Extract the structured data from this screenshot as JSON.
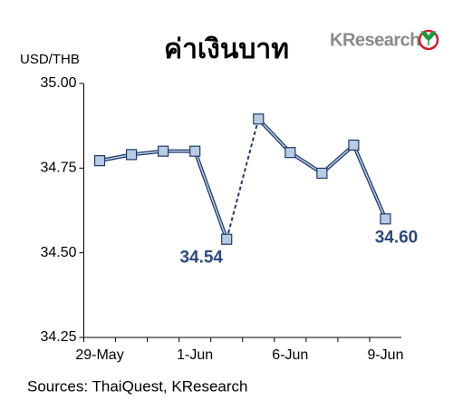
{
  "chart_data": {
    "type": "line",
    "title": "ค่าเงินบาท",
    "y_label": "USD/THB",
    "logo": "KResearch",
    "source": "Sources: ThaiQuest, KResearch",
    "categories": [
      "29-May",
      null,
      null,
      "1-Jun",
      null,
      null,
      "6-Jun",
      null,
      null,
      "9-Jun"
    ],
    "series": [
      {
        "color": "#1f3a6b",
        "values": [
          34.772,
          34.79,
          34.8,
          34.8,
          34.54,
          34.895,
          34.796,
          34.735,
          34.818,
          34.6
        ],
        "value_labels": [
          null,
          null,
          null,
          null,
          "34.54",
          null,
          null,
          null,
          null,
          "34.60"
        ]
      }
    ],
    "dashed_segments": [
      [
        4,
        5
      ]
    ],
    "marker_color": "#b8cce4",
    "label_color": "#2e4a7a",
    "ylim": [
      34.25,
      35.0
    ],
    "yticks": [
      {
        "value": 34.25,
        "label": "34.25"
      },
      {
        "value": 34.5,
        "label": "34.50"
      },
      {
        "value": 34.75,
        "label": "34.75"
      },
      {
        "value": 35.0,
        "label": "35.00"
      }
    ],
    "grid": false
  }
}
